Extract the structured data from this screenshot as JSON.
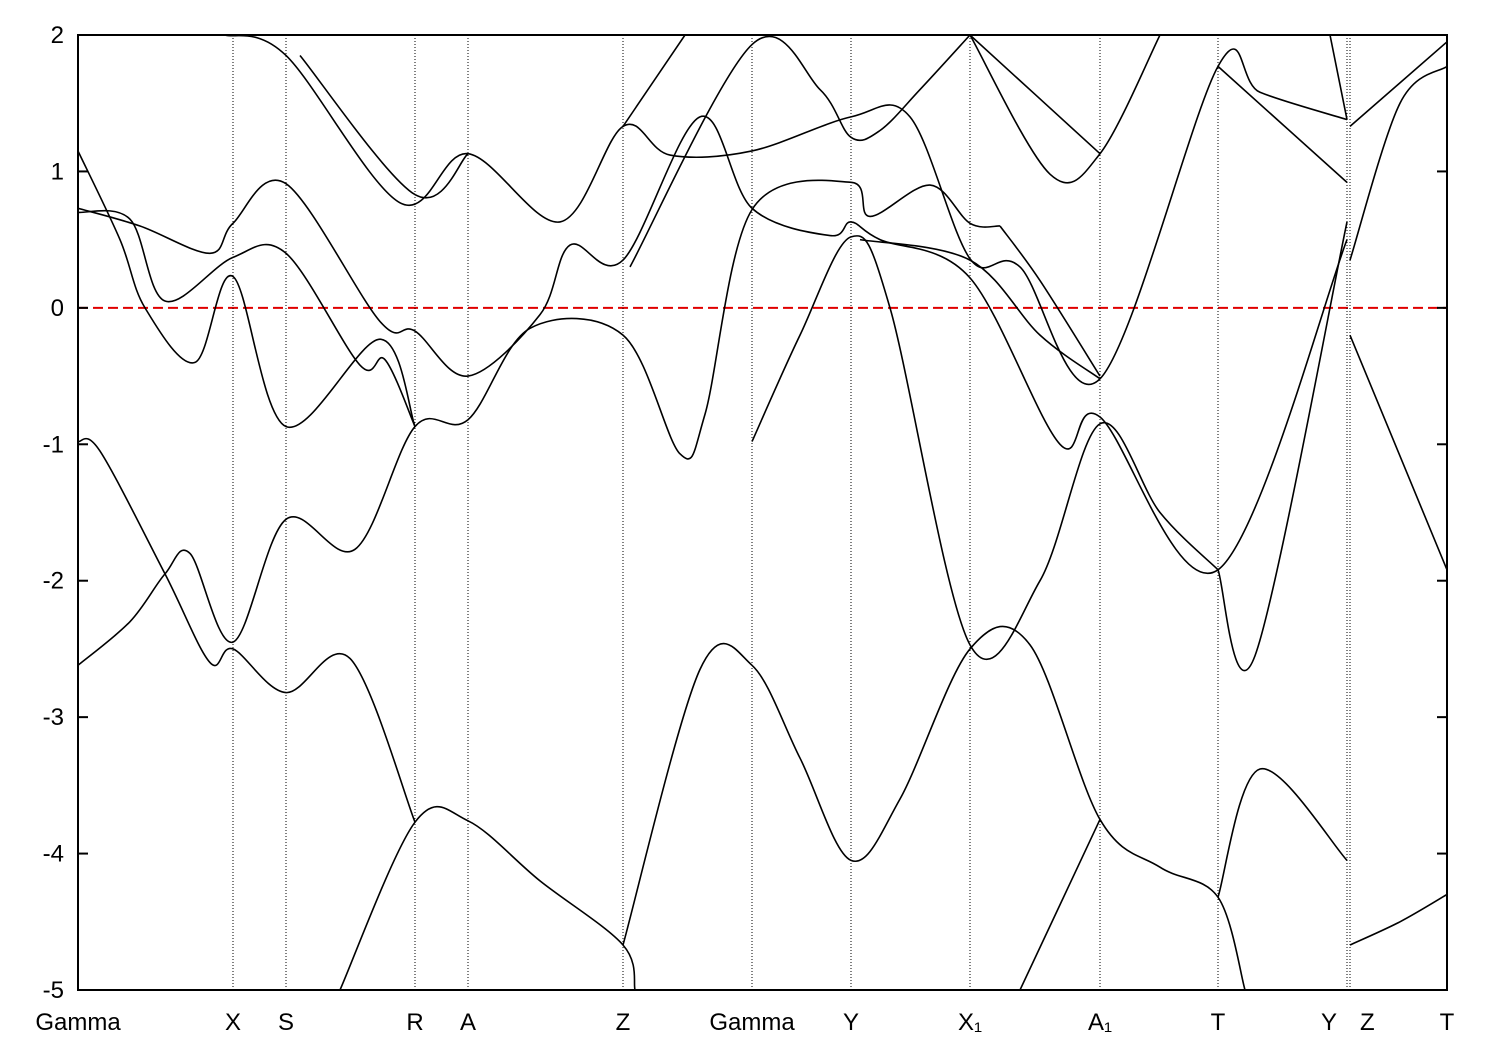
{
  "chart_data": {
    "type": "line",
    "xlim": [
      0,
      1.369
    ],
    "ylim": [
      -5,
      2
    ],
    "yticks": [
      -5,
      -4,
      -3,
      -2,
      -1,
      0,
      1,
      2
    ],
    "xticks": [
      {
        "value": 0,
        "label": "Gamma"
      },
      {
        "value": 0.155,
        "label": "X"
      },
      {
        "value": 0.208,
        "label": "S"
      },
      {
        "value": 0.337,
        "label": "R"
      },
      {
        "value": 0.39,
        "label": "A"
      },
      {
        "value": 0.545,
        "label": "Z"
      },
      {
        "value": 0.674,
        "label": "Gamma"
      },
      {
        "value": 0.773,
        "label": "Y"
      },
      {
        "value": 0.892,
        "label": "X₁"
      },
      {
        "value": 1.022,
        "label": "A₁"
      },
      {
        "value": 1.14,
        "label": "T"
      },
      {
        "value": 1.269,
        "label": "Y"
      },
      {
        "value": 1.272,
        "label": "Z"
      },
      {
        "value": 1.369,
        "label": "T"
      }
    ],
    "fermi_level": 0,
    "fermi_color": "#e00000",
    "series": [
      {
        "color": "#000000",
        "x": [
          0.262,
          0.337,
          0.39,
          0.462,
          0.545,
          0.557
        ],
        "values": [
          -5,
          -3.77,
          -3.76,
          -4.2,
          -4.67,
          -5
        ]
      },
      {
        "color": "#000000",
        "x": [
          0.545,
          0.622,
          0.674,
          0.722,
          0.773,
          0.822,
          0.892,
          0.952,
          1.022,
          1.082,
          1.14,
          1.167
        ],
        "values": [
          -4.67,
          -2.65,
          -2.62,
          -3.3,
          -4.05,
          -3.6,
          -2.5,
          -2.47,
          -3.75,
          -4.1,
          -4.32,
          -5
        ]
      },
      {
        "color": "#000000",
        "x": [
          0.942,
          1.022
        ],
        "values": [
          -5,
          -3.75
        ]
      },
      {
        "color": "#000000",
        "x": [
          1.14,
          1.182,
          1.269
        ],
        "values": [
          -4.32,
          -3.38,
          -4.05
        ]
      },
      {
        "color": "#000000",
        "x": [
          1.272,
          1.322,
          1.369
        ],
        "values": [
          -4.67,
          -4.5,
          -4.3
        ]
      },
      {
        "color": "#000000",
        "x": [
          0,
          0.022,
          0.087,
          0.132,
          0.155,
          0.208,
          0.272,
          0.337
        ],
        "values": [
          -0.98,
          -1.05,
          -1.95,
          -2.6,
          -2.5,
          -2.82,
          -2.57,
          -3.77
        ]
      },
      {
        "color": "#000000",
        "x": [
          0,
          0.052,
          0.087,
          0.112,
          0.155,
          0.208,
          0.277,
          0.337,
          0.39,
          0.452,
          0.545,
          0.602,
          0.627,
          0.674,
          0.773,
          0.792,
          0.852,
          0.892,
          0.922
        ],
        "values": [
          -2.62,
          -2.3,
          -1.95,
          -1.8,
          -2.45,
          -1.55,
          -1.77,
          -0.87,
          -0.82,
          -0.15,
          -0.2,
          -1.07,
          -0.78,
          0.72,
          0.92,
          0.67,
          0.9,
          0.62,
          0.6
        ]
      },
      {
        "color": "#000000",
        "x": [
          0.922,
          0.962,
          1.022
        ],
        "values": [
          0.6,
          0.2,
          -0.5
        ]
      },
      {
        "color": "#000000",
        "x": [
          0,
          0.052,
          0.087,
          0.155,
          0.208,
          0.282,
          0.307,
          0.337
        ],
        "values": [
          0.7,
          0.65,
          0.05,
          0.37,
          0.4,
          -0.42,
          -0.38,
          -0.87
        ]
      },
      {
        "color": "#000000",
        "x": [
          0,
          0.042,
          0.067,
          0.117,
          0.155,
          0.208,
          0.302,
          0.337
        ],
        "values": [
          1.15,
          0.5,
          0,
          -0.4,
          0.23,
          -0.87,
          -0.23,
          -0.87
        ]
      },
      {
        "color": "#000000",
        "x": [
          0,
          0.062,
          0.132,
          0.155,
          0.208,
          0.302,
          0.337,
          0.39,
          0.462,
          0.492,
          0.545,
          0.622,
          0.674,
          0.752,
          0.773,
          0.802,
          0.892,
          0.982,
          1.022,
          1.14,
          1.269
        ],
        "values": [
          0.73,
          0.6,
          0.4,
          0.62,
          0.91,
          -0.1,
          -0.17,
          -0.5,
          -0.05,
          0.46,
          0.35,
          1.4,
          0.73,
          0.53,
          0.63,
          0.5,
          0.22,
          -1.0,
          -0.8,
          -1.92,
          0.5
        ]
      },
      {
        "color": "#000000",
        "x": [
          0.147,
          0.208,
          0.322,
          0.39,
          0.482,
          0.545,
          0.592,
          0.674,
          0.773,
          0.832,
          0.892,
          0.942,
          1.022,
          1.14,
          1.182,
          1.269
        ],
        "values": [
          2,
          1.85,
          0.77,
          1.13,
          0.63,
          1.33,
          1.12,
          1.15,
          1.4,
          1.4,
          0.36,
          0.3,
          -0.52,
          1.77,
          1.58,
          1.38
        ]
      },
      {
        "color": "#000000",
        "x": [
          0.222,
          0.337,
          0.39
        ],
        "values": [
          1.85,
          0.83,
          1.13
        ]
      },
      {
        "color": "#000000",
        "x": [
          0.545,
          0.607
        ],
        "values": [
          1.33,
          2
        ]
      },
      {
        "color": "#000000",
        "x": [
          0.552,
          0.674,
          0.742,
          0.773,
          0.802,
          0.842,
          0.892
        ],
        "values": [
          0.3,
          1.93,
          1.6,
          1.25,
          1.3,
          1.6,
          2
        ]
      },
      {
        "color": "#000000",
        "x": [
          0.892,
          0.972,
          1.022,
          1.082
        ],
        "values": [
          2,
          0.98,
          1.13,
          2
        ]
      },
      {
        "color": "#000000",
        "x": [
          0.892,
          1.022
        ],
        "values": [
          2,
          1.13
        ]
      },
      {
        "color": "#000000",
        "x": [
          1.14,
          1.269
        ],
        "values": [
          1.77,
          0.92
        ]
      },
      {
        "color": "#000000",
        "x": [
          1.14,
          1.177,
          1.269
        ],
        "values": [
          -1.92,
          -2.55,
          0.63
        ]
      },
      {
        "color": "#000000",
        "x": [
          1.252,
          1.269
        ],
        "values": [
          2,
          1.38
        ]
      },
      {
        "color": "#000000",
        "x": [
          0.674,
          0.722,
          0.773,
          0.812,
          0.892,
          0.962,
          1.022,
          1.082,
          1.14
        ],
        "values": [
          -0.98,
          -0.2,
          0.52,
          0,
          -2.47,
          -2.0,
          -0.85,
          -1.5,
          -1.92
        ]
      },
      {
        "color": "#000000",
        "x": [
          0.782,
          0.892,
          0.962,
          1.022
        ],
        "values": [
          0.5,
          0.35,
          -0.2,
          -0.52
        ]
      },
      {
        "color": "#000000",
        "x": [
          1.272,
          1.322,
          1.369
        ],
        "values": [
          0.35,
          1.5,
          1.77
        ]
      },
      {
        "color": "#000000",
        "x": [
          1.272,
          1.369
        ],
        "values": [
          1.33,
          1.95
        ]
      },
      {
        "color": "#000000",
        "x": [
          1.272,
          1.369
        ],
        "values": [
          -0.2,
          -1.92
        ]
      }
    ]
  }
}
